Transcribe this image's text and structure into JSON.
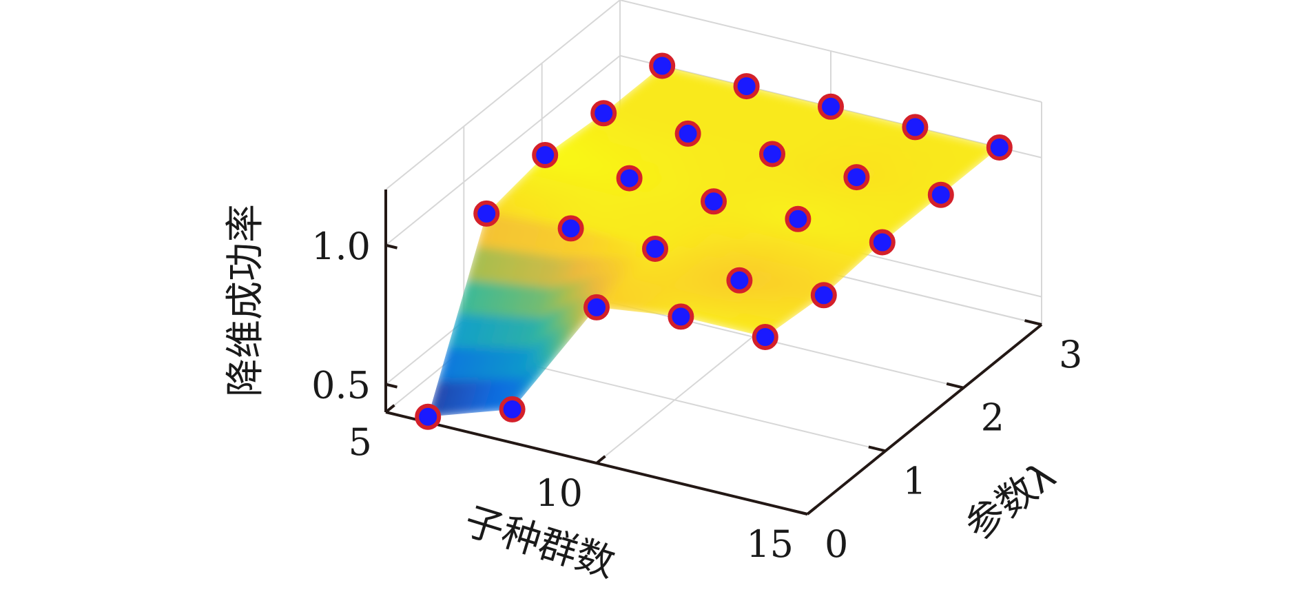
{
  "chart_data": {
    "type": "surface",
    "title": "",
    "xlabel": "子种群数",
    "ylabel": "参数λ",
    "zlabel": "降维成功率",
    "xlim": [
      5,
      15
    ],
    "ylim": [
      0,
      3
    ],
    "zlim": [
      0.4,
      1.2
    ],
    "xticks": [
      "5",
      "10",
      "15"
    ],
    "yticks": [
      "0",
      "1",
      "2",
      "3"
    ],
    "zticks": [
      "0.5",
      "1.0"
    ],
    "grid": true,
    "colormap": "parula",
    "marker_colors": {
      "face": "#1a1aff",
      "edge": "#d4202a"
    },
    "x": [
      6,
      8,
      10,
      12,
      14
    ],
    "y": [
      0,
      0.75,
      1.5,
      2.25,
      3
    ],
    "points": [
      {
        "x": 6,
        "y": 0,
        "z": 0.42
      },
      {
        "x": 8,
        "y": 0,
        "z": 0.52
      },
      {
        "x": 10,
        "y": 0,
        "z": 0.96
      },
      {
        "x": 12,
        "y": 0,
        "z": 1.0
      },
      {
        "x": 14,
        "y": 0,
        "z": 1.0
      },
      {
        "x": 6,
        "y": 0.75,
        "z": 0.98
      },
      {
        "x": 8,
        "y": 0.75,
        "z": 1.0
      },
      {
        "x": 10,
        "y": 0.75,
        "z": 1.0
      },
      {
        "x": 12,
        "y": 0.75,
        "z": 0.96
      },
      {
        "x": 14,
        "y": 0.75,
        "z": 0.98
      },
      {
        "x": 6,
        "y": 1.5,
        "z": 1.02
      },
      {
        "x": 8,
        "y": 1.5,
        "z": 1.01
      },
      {
        "x": 10,
        "y": 1.5,
        "z": 1.0
      },
      {
        "x": 12,
        "y": 1.5,
        "z": 1.01
      },
      {
        "x": 14,
        "y": 1.5,
        "z": 1.0
      },
      {
        "x": 6,
        "y": 2.25,
        "z": 1.0
      },
      {
        "x": 8,
        "y": 2.25,
        "z": 1.0
      },
      {
        "x": 10,
        "y": 2.25,
        "z": 1.0
      },
      {
        "x": 12,
        "y": 2.25,
        "z": 0.99
      },
      {
        "x": 14,
        "y": 2.25,
        "z": 1.0
      },
      {
        "x": 6,
        "y": 3,
        "z": 1.0
      },
      {
        "x": 8,
        "y": 3,
        "z": 1.0
      },
      {
        "x": 10,
        "y": 3,
        "z": 1.0
      },
      {
        "x": 12,
        "y": 3,
        "z": 1.0
      },
      {
        "x": 14,
        "y": 3,
        "z": 1.0
      }
    ]
  }
}
